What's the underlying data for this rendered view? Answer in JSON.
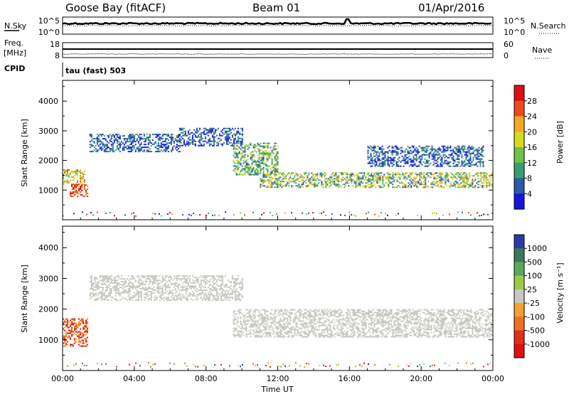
{
  "header": {
    "station": "Goose Bay (fitACF)",
    "beam": "Beam 01",
    "date": "01/Apr/2016"
  },
  "strip_panels": {
    "noise": {
      "left_label": "N.Sky",
      "right_label": "N.Search",
      "left_ticks": [
        "10^5",
        "10^0"
      ],
      "right_ticks": [
        "10^5",
        "10^0"
      ]
    },
    "freq": {
      "left_label_1": "Freq.",
      "left_label_2": "[MHz]",
      "right_label": "Nave",
      "left_ticks": [
        "18",
        "8"
      ],
      "right_ticks": [
        "60",
        "0"
      ]
    },
    "cpid": {
      "label": "CPID",
      "value": "tau (fast) 503"
    }
  },
  "power_colorbar": {
    "label": "Power [dB]",
    "ticks": [
      "28",
      "24",
      "20",
      "16",
      "12",
      "8",
      "4"
    ],
    "colors": [
      "#e01010",
      "#f04a1a",
      "#f5a623",
      "#d8d820",
      "#6cc44b",
      "#3a9e6e",
      "#2a5aa8",
      "#1515e0"
    ]
  },
  "velocity_colorbar": {
    "label": "Velocity [m s⁻¹]",
    "ticks": [
      "1000",
      "500",
      "100",
      "25",
      "-25",
      "-100",
      "-500",
      "-1000"
    ],
    "colors": [
      "#2a3aa8",
      "#3a7a5a",
      "#5aaa5a",
      "#99cc44",
      "#c8c8c0",
      "#f5a030",
      "#f07020",
      "#e03018",
      "#e01010"
    ]
  },
  "chart_data": [
    {
      "type": "heatmap",
      "name": "power",
      "ylabel": "Slant Range [km]",
      "yticks": [
        "1000",
        "2000",
        "3000",
        "4000"
      ],
      "ylim": [
        0,
        4700
      ],
      "xlim": [
        0,
        24
      ],
      "echo_regions": [
        {
          "t": [
            0.0,
            1.2
          ],
          "range": [
            1200,
            1700
          ],
          "level": "high"
        },
        {
          "t": [
            0.4,
            1.4
          ],
          "range": [
            800,
            1200
          ],
          "level": "very high"
        },
        {
          "t": [
            1.5,
            6.5
          ],
          "range": [
            2300,
            2900
          ],
          "level": "low"
        },
        {
          "t": [
            6.5,
            10.0
          ],
          "range": [
            2500,
            3100
          ],
          "level": "low"
        },
        {
          "t": [
            9.5,
            12.0
          ],
          "range": [
            1500,
            2600
          ],
          "level": "medium"
        },
        {
          "t": [
            11.0,
            24.0
          ],
          "range": [
            1100,
            1600
          ],
          "level": "medium-high"
        },
        {
          "t": [
            17.0,
            23.5
          ],
          "range": [
            1800,
            2500
          ],
          "level": "low"
        }
      ]
    },
    {
      "type": "heatmap",
      "name": "velocity",
      "ylabel": "Slant Range [km]",
      "xlabel": "Time UT",
      "xticks": [
        "00:00",
        "04:00",
        "08:00",
        "12:00",
        "16:00",
        "20:00",
        "00:00"
      ],
      "yticks": [
        "1000",
        "2000",
        "3000",
        "4000"
      ],
      "ylim": [
        0,
        4700
      ],
      "xlim": [
        0,
        24
      ],
      "echo_regions": [
        {
          "t": [
            0.0,
            1.4
          ],
          "range": [
            800,
            1700
          ],
          "level": "negative"
        },
        {
          "t": [
            1.5,
            10.0
          ],
          "range": [
            2300,
            3100
          ],
          "level": "near zero"
        },
        {
          "t": [
            9.5,
            24.0
          ],
          "range": [
            1100,
            2000
          ],
          "level": "near zero"
        }
      ]
    }
  ]
}
